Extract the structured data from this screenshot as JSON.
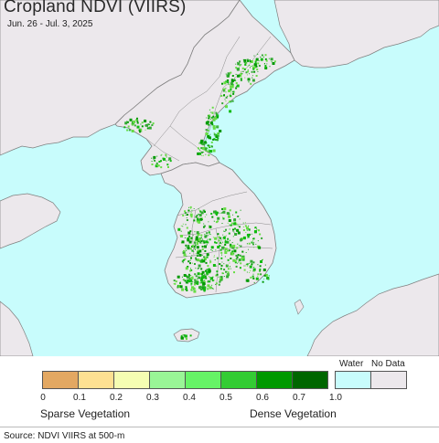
{
  "header": {
    "title": "Cropland NDVI (VIIRS)",
    "date_range": "Jun. 26 - Jul. 3, 2025"
  },
  "map": {
    "water_color": "#c8fcfc",
    "land_color": "#ece8ec",
    "border_color": "#7f7f7f",
    "vegetation_colors": [
      "#33aa33",
      "#11bb11",
      "#66dd44",
      "#009900"
    ]
  },
  "legend": {
    "colors": [
      "#e3a862",
      "#fde092",
      "#f5fdb2",
      "#99f596",
      "#66f366",
      "#33cc33",
      "#009900",
      "#006600"
    ],
    "ticks": [
      "0",
      "0.1",
      "0.2",
      "0.3",
      "0.4",
      "0.5",
      "0.6",
      "0.7",
      "1.0"
    ],
    "water_label": "Water",
    "water_color": "#c8fcfc",
    "nodata_label": "No Data",
    "nodata_color": "#ece8ec",
    "sparse_label": "Sparse Vegetation",
    "dense_label": "Dense Vegetation"
  },
  "footer": {
    "source": "Source: NDVI VIIRS at 500-m"
  }
}
